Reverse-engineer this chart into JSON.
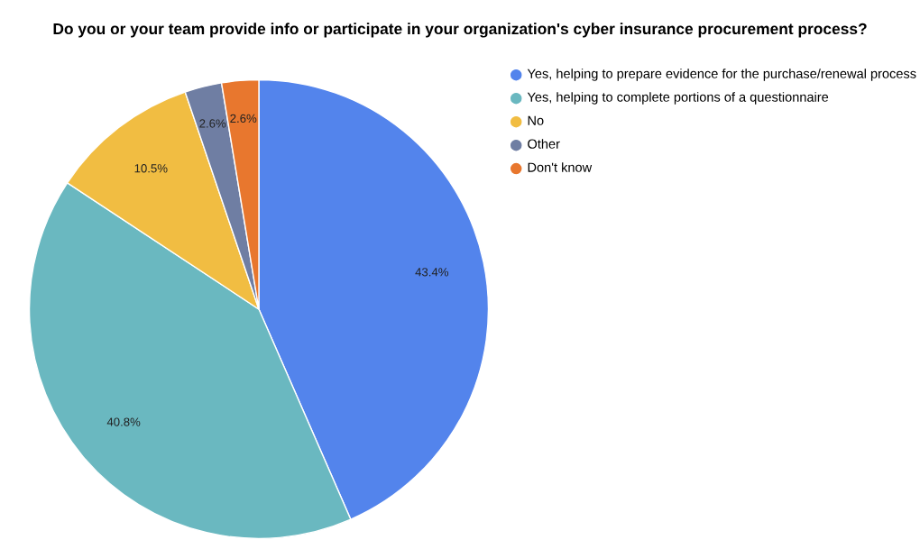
{
  "chart_data": {
    "type": "pie",
    "title": "Do you or your team provide info or participate in your organization's cyber insurance procurement process?",
    "categories": [
      "Yes, helping to prepare evidence for the purchase/renewal process",
      "Yes, helping to complete portions of a questionnaire",
      "No",
      "Other",
      "Don't know"
    ],
    "values": [
      43.4,
      40.8,
      10.5,
      2.6,
      2.6
    ],
    "value_labels": [
      "43.4%",
      "40.8%",
      "10.5%",
      "2.6%",
      "2.6%"
    ],
    "colors": [
      "#5384ec",
      "#6ab8c0",
      "#f1bd42",
      "#6f7ea3",
      "#e8772e"
    ],
    "legend": "top right"
  }
}
